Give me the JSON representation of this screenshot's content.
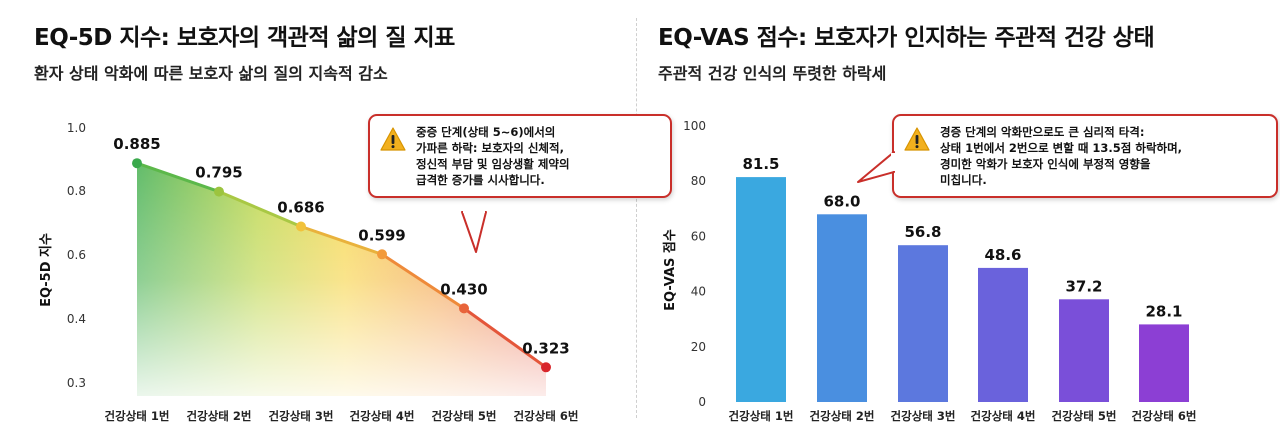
{
  "left": {
    "title": "EQ-5D 지수: 보호자의 객관적 삶의 질 지표",
    "subtitle": "환자 상태 악화에 따른 보호자 삶의 질의 지속적 감소",
    "callout_lines": [
      "중증 단계(상태 5~6)에서의",
      "가파른 하락: 보호자의 신체적,",
      "정신적 부담 및 임상생활 제약의",
      "급격한 증가를 시사합니다."
    ],
    "callout_icon": "warning-icon"
  },
  "right": {
    "title": "EQ-VAS 점수: 보호자가 인지하는 주관적 건강 상태",
    "subtitle": "주관적 건강 인식의 뚜렷한 하락세",
    "callout_lines": [
      "경증 단계의 악화만으로도 큰 심리적 타격:",
      "상태 1번에서 2번으로 변할 때 13.5점 하락하며,",
      "경미한 악화가 보호자 인식에 부정적 영향을",
      "미칩니다."
    ],
    "callout_icon": "warning-icon"
  },
  "colors": {
    "line": "#d9483b",
    "callout_border": "#c92f2a",
    "bar_top": "#3aa6e0",
    "bar_bottom": "#8e3fd6",
    "warning": "#f2b01e"
  },
  "chart_data": [
    {
      "type": "area",
      "categories": [
        "건강상태 1번",
        "건강상태 2번",
        "건강상태 3번",
        "건강상태 4번",
        "건강상태 5번",
        "건강상태 6번"
      ],
      "values": [
        0.885,
        0.795,
        0.686,
        0.599,
        0.43,
        0.323
      ],
      "value_labels": [
        "0.885",
        "0.795",
        "0.686",
        "0.599",
        "0.430",
        "0.323"
      ],
      "ylabel": "EQ-5D 지수",
      "ylim": [
        0.3,
        1.0
      ],
      "yticks": [
        "0.3",
        "0.4",
        "0.6",
        "0.8",
        "1.0"
      ],
      "ytick_values": [
        0.3,
        0.4,
        0.6,
        0.8,
        1.0
      ],
      "grid": false
    },
    {
      "type": "bar",
      "categories": [
        "건강상태 1번",
        "건강상태 2번",
        "건강상태 3번",
        "건강상태 4번",
        "건강상태 5번",
        "건강상태 6번"
      ],
      "values": [
        81.5,
        68.0,
        56.8,
        48.6,
        37.2,
        28.1
      ],
      "value_labels": [
        "81.5",
        "68.0",
        "56.8",
        "48.6",
        "37.2",
        "28.1"
      ],
      "ylabel": "EQ-VAS 점수",
      "ylim": [
        0,
        100
      ],
      "yticks": [
        "0",
        "20",
        "40",
        "60",
        "80",
        "100"
      ],
      "ytick_values": [
        0,
        20,
        40,
        60,
        80,
        100
      ],
      "grid": false
    }
  ]
}
